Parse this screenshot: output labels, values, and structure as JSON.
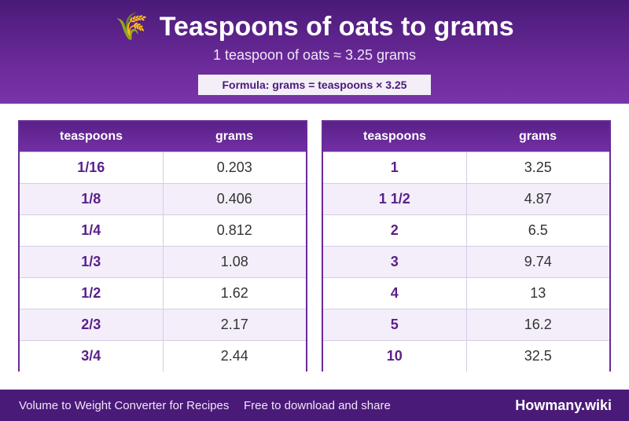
{
  "header": {
    "icon": "wheat-icon",
    "icon_glyph": "🌾",
    "title": "Teaspoons of oats to grams",
    "subtitle": "1 teaspoon of oats ≈ 3.25 grams",
    "formula": "Formula: grams = teaspoons × 3.25"
  },
  "tables": [
    {
      "headers": [
        "teaspoons",
        "grams"
      ],
      "rows": [
        [
          "1/16",
          "0.203"
        ],
        [
          "1/8",
          "0.406"
        ],
        [
          "1/4",
          "0.812"
        ],
        [
          "1/3",
          "1.08"
        ],
        [
          "1/2",
          "1.62"
        ],
        [
          "2/3",
          "2.17"
        ],
        [
          "3/4",
          "2.44"
        ]
      ]
    },
    {
      "headers": [
        "teaspoons",
        "grams"
      ],
      "rows": [
        [
          "1",
          "3.25"
        ],
        [
          "1 1/2",
          "4.87"
        ],
        [
          "2",
          "6.5"
        ],
        [
          "3",
          "9.74"
        ],
        [
          "4",
          "13"
        ],
        [
          "5",
          "16.2"
        ],
        [
          "10",
          "32.5"
        ]
      ]
    }
  ],
  "footer": {
    "left": "Volume to Weight Converter for Recipes",
    "middle": "Free to download and share",
    "brand": "Howmany.wiki"
  },
  "colors": {
    "primary": "#4a1a78",
    "accent": "#6a2a98",
    "row_alt": "#f4eefa"
  }
}
